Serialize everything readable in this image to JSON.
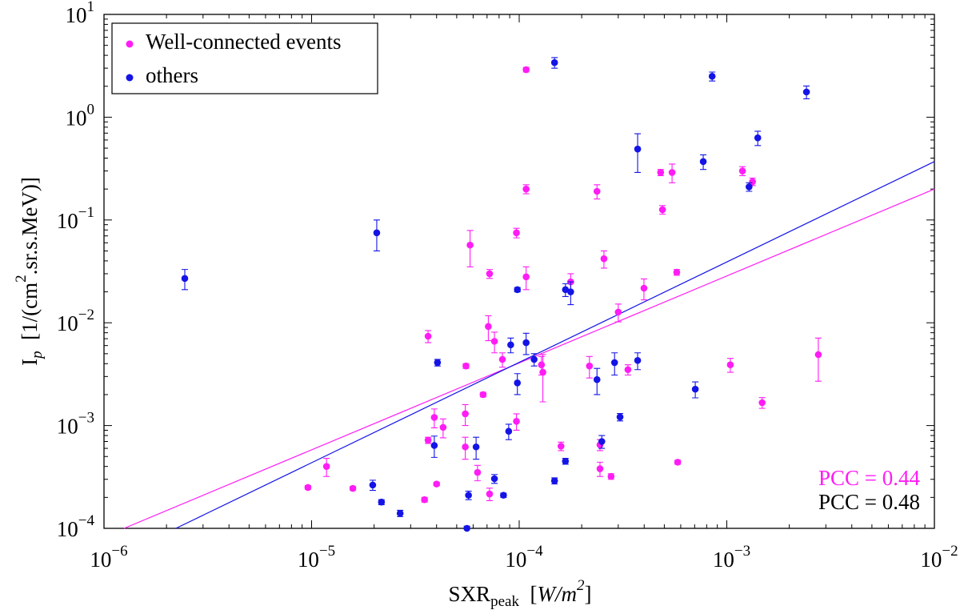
{
  "chart_data": {
    "type": "scatter",
    "log_x": true,
    "log_y": true,
    "xlim": [
      1e-06,
      0.01
    ],
    "ylim": [
      0.0001,
      10
    ],
    "xticks": [
      {
        "value": 1e-06,
        "label": "10",
        "exponent": "−6"
      },
      {
        "value": 1e-05,
        "label": "10",
        "exponent": "−5"
      },
      {
        "value": 0.0001,
        "label": "10",
        "exponent": "−4"
      },
      {
        "value": 0.001,
        "label": "10",
        "exponent": "−3"
      },
      {
        "value": 0.01,
        "label": "10",
        "exponent": "−2"
      }
    ],
    "yticks": [
      {
        "value": 0.0001,
        "label": "10",
        "exponent": "−4"
      },
      {
        "value": 0.001,
        "label": "10",
        "exponent": "−3"
      },
      {
        "value": 0.01,
        "label": "10",
        "exponent": "−2"
      },
      {
        "value": 0.1,
        "label": "10",
        "exponent": "−1"
      },
      {
        "value": 1,
        "label": "10",
        "exponent": "0"
      },
      {
        "value": 10,
        "label": "10",
        "exponent": "1"
      }
    ],
    "xlabel": [
      {
        "text": "SXR"
      },
      {
        "text": "peak",
        "position": "sub"
      },
      {
        "text": "  ["
      },
      {
        "text": "W/m",
        "style": "italic"
      },
      {
        "text": "2",
        "position": "sup",
        "style": "italic"
      },
      {
        "text": "]"
      }
    ],
    "ylabel": [
      {
        "text": "I"
      },
      {
        "text": "p",
        "position": "sub",
        "style": "italic"
      },
      {
        "text": "  [1/(cm"
      },
      {
        "text": "2",
        "position": "sup"
      },
      {
        "text": ".sr.s.MeV)]"
      }
    ],
    "legend": "upper left",
    "series": [
      {
        "name": "Well-connected events",
        "color": "#ff1cf5",
        "x": [
          0.000108,
          0.000108,
          5.8e-05,
          7.2e-05,
          9.7e-05,
          0.000108,
          0.000177,
          0.000237,
          0.000256,
          0.00048,
          0.000545,
          0.00049,
          0.000574,
          0.00119,
          0.00133,
          0.000399,
          0.0003,
          3.64e-05,
          7.1e-05,
          7.6e-05,
          8.3e-05,
          5.54e-05,
          0.00013,
          0.000128,
          0.000218,
          0.000334,
          6.7e-05,
          5.5e-05,
          3.9e-05,
          4.3e-05,
          3.64e-05,
          5.5e-05,
          9.7e-05,
          0.000159,
          0.000245,
          6.3e-05,
          7.2e-05,
          0.000245,
          0.000277,
          0.00058,
          4e-05,
          3.5e-05,
          1.58e-05,
          9.6e-06,
          1.18e-05,
          0.00104,
          0.00148,
          0.00276
        ],
        "values": [
          2.9,
          0.2,
          0.057,
          0.03,
          0.075,
          0.028,
          0.025,
          0.19,
          0.042,
          0.29,
          0.29,
          0.126,
          0.031,
          0.3,
          0.236,
          0.0217,
          0.0127,
          0.0074,
          0.0092,
          0.0066,
          0.0044,
          0.0038,
          0.0033,
          0.0039,
          0.0038,
          0.0035,
          0.002,
          0.0013,
          0.0012,
          0.00096,
          0.00072,
          0.00062,
          0.0011,
          0.00063,
          0.00065,
          0.00035,
          0.000216,
          0.00038,
          0.00032,
          0.00044,
          0.00027,
          0.00019,
          0.000245,
          0.00025,
          0.0004,
          0.0039,
          0.00167,
          0.0049
        ],
        "errors": [
          0.15,
          0.02,
          0.022,
          0.003,
          0.008,
          0.007,
          0.005,
          0.03,
          0.008,
          0.02,
          0.06,
          0.012,
          0.002,
          0.03,
          0.02,
          0.005,
          0.0025,
          0.001,
          0.0025,
          0.0015,
          0.0007,
          0.0002,
          0.0016,
          0.0008,
          0.0009,
          0.0004,
          0.0001,
          0.0003,
          0.00025,
          0.0002,
          5e-05,
          0.00015,
          0.0002,
          6e-05,
          8e-05,
          6e-05,
          3e-05,
          6e-05,
          2e-05,
          2e-05,
          1e-05,
          1e-05,
          1e-05,
          1e-05,
          8e-05,
          0.0006,
          0.0002,
          0.0022
        ]
      },
      {
        "name": "others",
        "color": "#1414e6",
        "x": [
          2.45e-06,
          2.06e-05,
          0.000148,
          0.00085,
          0.00242,
          0.00141,
          0.00077,
          0.000372,
          0.00128,
          9.8e-05,
          0.000167,
          0.000177,
          9.1e-05,
          0.000108,
          0.000118,
          9.8e-05,
          0.000237,
          0.000288,
          0.000372,
          4.04e-05,
          0.000705,
          0.000306,
          8.9e-05,
          0.00025,
          3.9e-05,
          6.2e-05,
          0.000167,
          7.6e-05,
          0.000148,
          1.97e-05,
          5.7e-05,
          8.4e-05,
          2.17e-05,
          2.67e-05,
          5.6e-05
        ],
        "values": [
          0.027,
          0.075,
          3.4,
          2.5,
          1.76,
          0.63,
          0.37,
          0.49,
          0.21,
          0.021,
          0.021,
          0.02,
          0.0061,
          0.0064,
          0.0044,
          0.0026,
          0.0028,
          0.0041,
          0.0043,
          0.0041,
          0.00226,
          0.00121,
          0.00088,
          0.0007,
          0.00064,
          0.00062,
          0.00045,
          0.000304,
          0.00029,
          0.000264,
          0.00021,
          0.00021,
          0.00018,
          0.00014,
          0.0001
        ],
        "errors": [
          0.006,
          0.025,
          0.4,
          0.25,
          0.25,
          0.1,
          0.06,
          0.2,
          0.02,
          0.001,
          0.003,
          0.005,
          0.001,
          0.0015,
          0.0006,
          0.0006,
          0.0008,
          0.001,
          0.0008,
          0.0003,
          0.0004,
          0.0001,
          0.00015,
          0.0001,
          0.00015,
          0.00015,
          3e-05,
          3e-05,
          2e-05,
          3e-05,
          2e-05,
          1e-05,
          1e-05,
          1e-05,
          5e-06
        ]
      }
    ],
    "fits": [
      {
        "color": "#ff1cf5",
        "x": [
          1.25e-06,
          0.01
        ],
        "values": [
          0.0001,
          0.2
        ]
      },
      {
        "color": "#1414e6",
        "x": [
          2.22e-06,
          0.01
        ],
        "values": [
          0.0001,
          0.37
        ]
      }
    ],
    "annotations": [
      {
        "text": "PCC = 0.44",
        "color": "#ff1cf5"
      },
      {
        "text": "PCC = 0.48",
        "color": "#000000"
      }
    ]
  }
}
